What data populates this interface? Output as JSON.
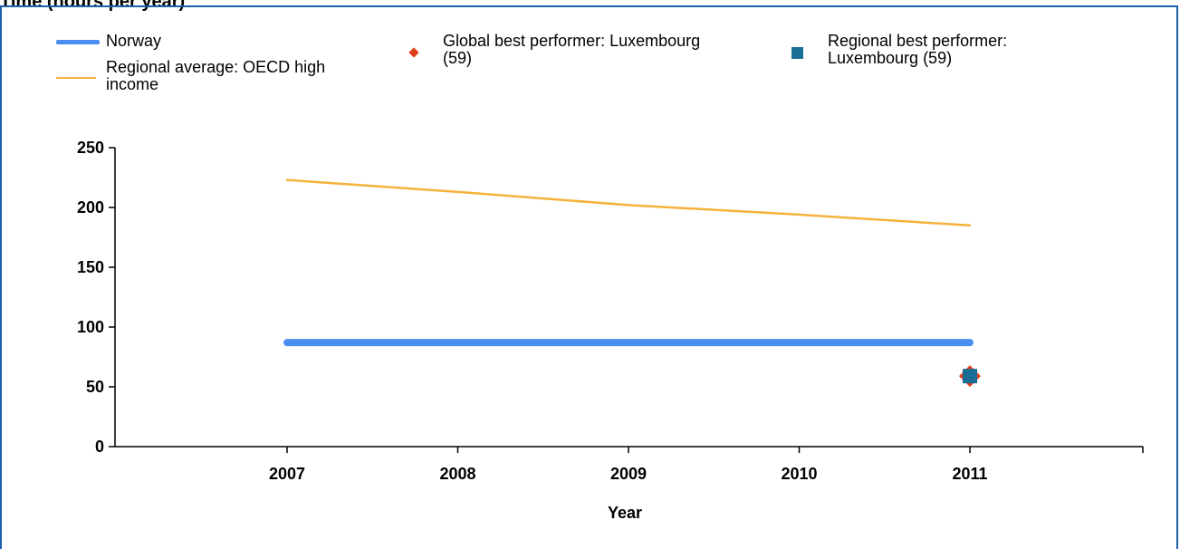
{
  "title": "Time (hours per year)",
  "legend": [
    {
      "label_lines": [
        "Norway"
      ],
      "color": "#4a8ff0",
      "kind": "thick-line"
    },
    {
      "label_lines": [
        "Regional average: OECD high",
        "income"
      ],
      "color": "#f5b23a",
      "kind": "thin-line"
    },
    {
      "label_lines": [
        "Global best performer: Luxembourg",
        "(59)"
      ],
      "color": "#e0401c",
      "kind": "diamond"
    },
    {
      "label_lines": [
        "Regional best performer:",
        "Luxembourg (59)"
      ],
      "color": "#1a6e96",
      "kind": "square"
    }
  ],
  "chart_data": {
    "type": "line",
    "title": "Time (hours per year)",
    "xlabel": "Year",
    "ylabel": "",
    "categories": [
      "2007",
      "2008",
      "2009",
      "2010",
      "2011"
    ],
    "ylim": [
      0,
      250
    ],
    "yticks": [
      0,
      50,
      100,
      150,
      200,
      250
    ],
    "grid": false,
    "legend_position": "top",
    "series": [
      {
        "name": "Norway",
        "type": "line",
        "color": "#4a8ff0",
        "values": [
          87,
          87,
          87,
          87,
          87
        ]
      },
      {
        "name": "Regional average: OECD high income",
        "type": "line",
        "color": "#f5b23a",
        "values": [
          223,
          213,
          202,
          194,
          185
        ]
      },
      {
        "name": "Global best performer: Luxembourg (59)",
        "type": "marker",
        "marker": "diamond",
        "color": "#e0401c",
        "points": [
          {
            "x": "2011",
            "y": 59
          }
        ]
      },
      {
        "name": "Regional best performer: Luxembourg (59)",
        "type": "marker",
        "marker": "square",
        "color": "#1a6e96",
        "points": [
          {
            "x": "2011",
            "y": 59
          }
        ]
      }
    ]
  }
}
